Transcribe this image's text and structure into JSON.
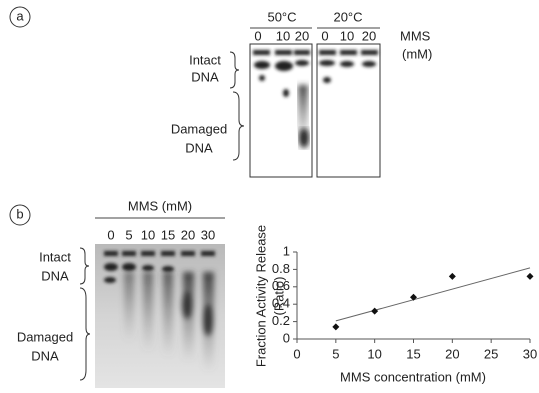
{
  "panel_a": {
    "label": "a",
    "temps": [
      "50°C",
      "20°C"
    ],
    "lanes": [
      "0",
      "10",
      "20"
    ],
    "mms": "MMS",
    "unit": "(mM)",
    "intact": [
      "Intact",
      "DNA"
    ],
    "damaged": [
      "Damaged",
      "DNA"
    ]
  },
  "panel_b": {
    "label": "b",
    "title": "MMS (mM)",
    "lanes": [
      "0",
      "5",
      "10",
      "15",
      "20",
      "30"
    ],
    "intact": [
      "Intact",
      "DNA"
    ],
    "damaged": [
      "Damaged",
      "DNA"
    ]
  },
  "chart_data": {
    "type": "scatter",
    "x_label": "MMS concentration (mM)",
    "y_label": [
      "Fraction Activity Release",
      "(Ratio)"
    ],
    "x": [
      5,
      10,
      15,
      20,
      30
    ],
    "values": [
      0.14,
      0.32,
      0.48,
      0.72,
      0.72
    ],
    "color": "#111111",
    "trendline": true,
    "xlim": [
      0,
      30
    ],
    "xticks": [
      0,
      5,
      10,
      15,
      20,
      25,
      30
    ],
    "ylim": [
      0,
      1
    ],
    "yticks": [
      0,
      0.2,
      0.4,
      0.6,
      0.8,
      1
    ]
  }
}
